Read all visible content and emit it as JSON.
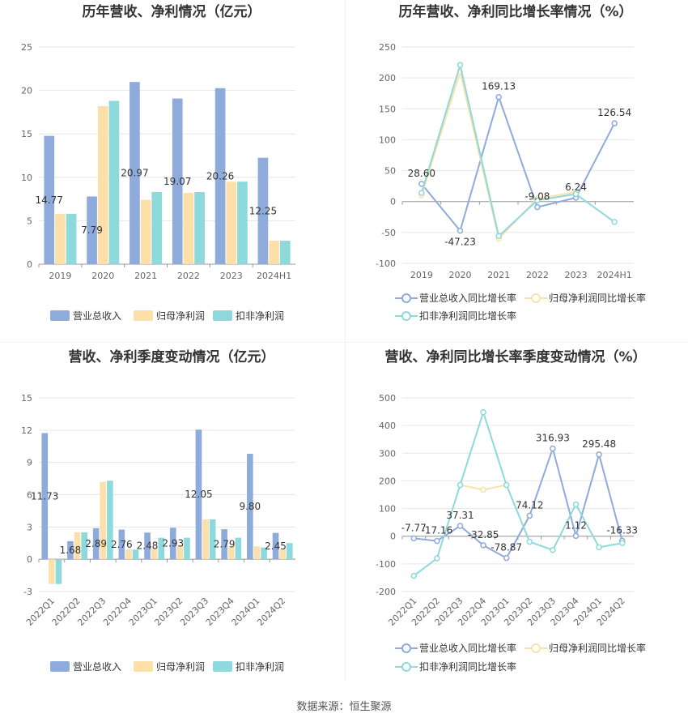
{
  "source_text": "数据来源：恒生聚源",
  "colors": {
    "revenue": "#8eabdc",
    "netprofit": "#fde0a9",
    "deducted": "#8dd9db",
    "grid": "#e6e6e6",
    "axis": "#999999",
    "title": "#333333"
  },
  "chart_data": [
    {
      "id": "annual-bar",
      "type": "bar",
      "title": "历年营收、净利情况（亿元）",
      "categories": [
        "2019",
        "2020",
        "2021",
        "2022",
        "2023",
        "2024H1"
      ],
      "ylim": [
        0,
        25
      ],
      "yticks": [
        0,
        5,
        10,
        15,
        20,
        25
      ],
      "series": [
        {
          "name": "营业总收入",
          "values": [
            14.77,
            7.79,
            20.97,
            19.07,
            20.26,
            12.25
          ],
          "labels": [
            "14.77",
            "7.79",
            "20.97",
            "19.07",
            "20.26",
            "12.25"
          ]
        },
        {
          "name": "归母净利润",
          "values": [
            5.8,
            18.2,
            7.4,
            8.2,
            9.5,
            2.7
          ]
        },
        {
          "name": "扣非净利润",
          "values": [
            5.8,
            18.8,
            8.3,
            8.3,
            9.5,
            2.7
          ]
        }
      ],
      "legend": "bottom"
    },
    {
      "id": "annual-line",
      "type": "line",
      "title": "历年营收、净利同比增长率情况（%）",
      "categories": [
        "2019",
        "2020",
        "2021",
        "2022",
        "2023",
        "2024H1"
      ],
      "ylim": [
        -100,
        250
      ],
      "yticks": [
        -100,
        -50,
        0,
        50,
        100,
        150,
        200,
        250
      ],
      "series": [
        {
          "name": "营业总收入同比增长率",
          "values": [
            28.6,
            -47.23,
            169.13,
            -9.08,
            6.24,
            126.54
          ],
          "labels": [
            "28.60",
            "-47.23",
            "169.13",
            "-9.08",
            "6.24",
            "126.54"
          ]
        },
        {
          "name": "归母净利润同比增长率",
          "values": [
            10,
            210,
            -60,
            5,
            15,
            null
          ]
        },
        {
          "name": "扣非净利润同比增长率",
          "values": [
            14,
            221,
            -56,
            2,
            12,
            -33
          ]
        }
      ],
      "legend": "bottom"
    },
    {
      "id": "quarterly-bar",
      "type": "bar",
      "title": "营收、净利季度变动情况（亿元）",
      "categories": [
        "2022Q1",
        "2022Q2",
        "2022Q3",
        "2022Q4",
        "2023Q1",
        "2023Q2",
        "2023Q3",
        "2023Q4",
        "2024Q1",
        "2024Q2"
      ],
      "ylim": [
        -3,
        15
      ],
      "yticks": [
        -3,
        0,
        3,
        6,
        9,
        12,
        15
      ],
      "series": [
        {
          "name": "营业总收入",
          "values": [
            11.73,
            1.68,
            2.89,
            2.76,
            2.48,
            2.93,
            12.05,
            2.79,
            9.8,
            2.45
          ],
          "labels": [
            "11.73",
            "1.68",
            "2.89",
            "2.76",
            "2.48",
            "2.93",
            "12.05",
            "2.79",
            "9.80",
            "2.45"
          ]
        },
        {
          "name": "归母净利润",
          "values": [
            -2.3,
            2.5,
            7.2,
            0.9,
            1.0,
            1.3,
            3.7,
            1.2,
            1.2,
            0.9
          ]
        },
        {
          "name": "扣非净利润",
          "values": [
            -2.3,
            2.5,
            7.3,
            0.9,
            2.0,
            2.0,
            3.7,
            2.0,
            1.1,
            1.5
          ]
        }
      ],
      "legend": "bottom"
    },
    {
      "id": "quarterly-line",
      "type": "line",
      "title": "营收、净利同比增长率季度变动情况（%）",
      "categories": [
        "2022Q1",
        "2022Q2",
        "2022Q3",
        "2022Q4",
        "2023Q1",
        "2023Q2",
        "2023Q3",
        "2023Q4",
        "2024Q1",
        "2024Q2"
      ],
      "ylim": [
        -200,
        500
      ],
      "yticks": [
        -200,
        -100,
        0,
        100,
        200,
        300,
        400,
        500
      ],
      "series": [
        {
          "name": "营业总收入同比增长率",
          "values": [
            -7.77,
            -17.16,
            37.31,
            -32.85,
            -78.87,
            74.12,
            316.93,
            1.12,
            295.48,
            -16.33
          ],
          "labels": [
            "-7.77",
            "-17.16",
            "37.31",
            "-32.85",
            "-78.87",
            "74.12",
            "316.93",
            "1.12",
            "295.48",
            "-16.33"
          ]
        },
        {
          "name": "归母净利润同比增长率",
          "values": [
            null,
            null,
            185,
            168,
            185,
            null,
            null,
            null,
            null,
            null
          ]
        },
        {
          "name": "扣非净利润同比增长率",
          "values": [
            -143,
            -80,
            185,
            448,
            185,
            -20,
            -50,
            115,
            -40,
            -25
          ]
        }
      ],
      "legend": "bottom"
    }
  ]
}
